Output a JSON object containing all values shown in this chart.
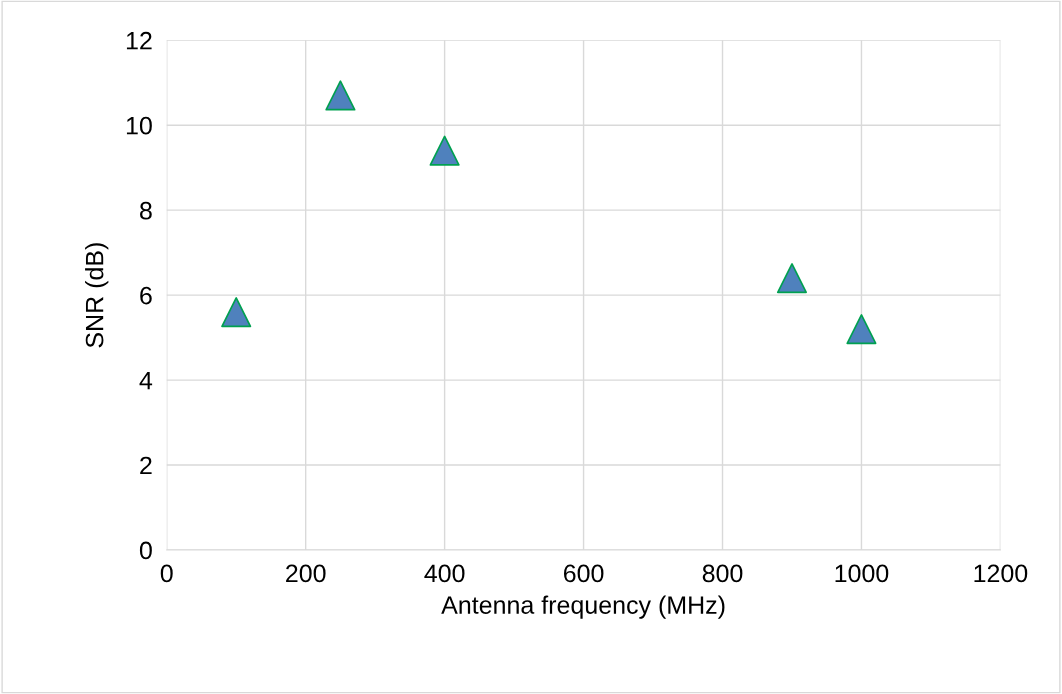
{
  "chart_data": {
    "type": "scatter",
    "xlabel": "Antenna frequency (MHz)",
    "ylabel": "SNR (dB)",
    "x": [
      100,
      250,
      400,
      900,
      1000
    ],
    "series": [
      {
        "color": "#4f81bd",
        "values": [
          5.6,
          10.7,
          9.4,
          6.4,
          5.2
        ]
      }
    ],
    "xlim": [
      0,
      1200
    ],
    "xticks": [
      0,
      200,
      400,
      600,
      800,
      1000,
      1200
    ],
    "ylim": [
      0,
      12
    ],
    "yticks": [
      0,
      2,
      4,
      6,
      8,
      10,
      12
    ],
    "grid": true,
    "marker": "triangle"
  }
}
